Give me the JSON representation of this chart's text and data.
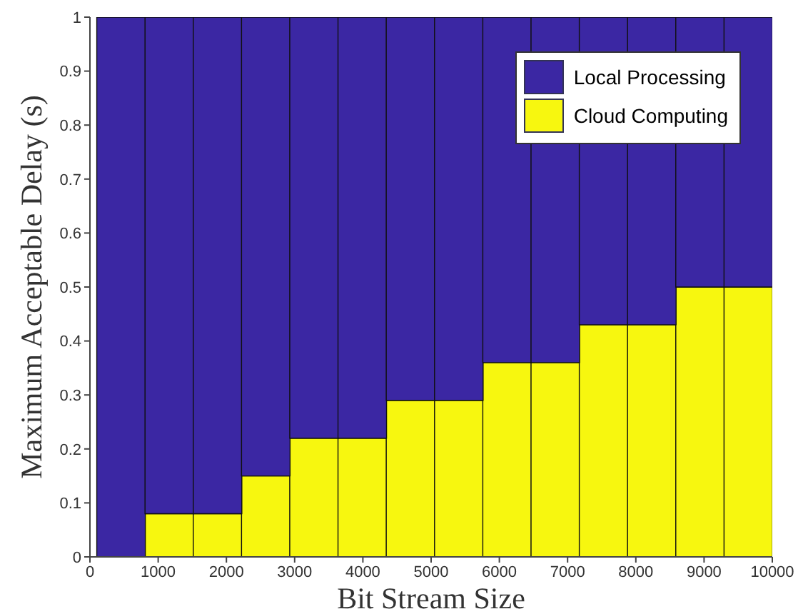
{
  "chart_data": {
    "type": "bar",
    "stacked": true,
    "xlabel": "Bit Stream Size",
    "ylabel": "Maximum Acceptable Delay (s)",
    "x": [
      454,
      1161,
      1868,
      2575,
      3282,
      3989,
      4696,
      5404,
      6111,
      6818,
      7525,
      8232,
      8939,
      9646
    ],
    "series": [
      {
        "name": "Cloud Computing",
        "color": "#f7f70f",
        "values": [
          0,
          0.08,
          0.08,
          0.15,
          0.22,
          0.22,
          0.29,
          0.29,
          0.36,
          0.36,
          0.43,
          0.43,
          0.5,
          0.5
        ]
      },
      {
        "name": "Local Processing",
        "color": "#3b27a3",
        "values": [
          1,
          0.92,
          0.92,
          0.85,
          0.78,
          0.78,
          0.71,
          0.71,
          0.64,
          0.64,
          0.57,
          0.57,
          0.5,
          0.5
        ]
      }
    ],
    "xlim": [
      0,
      10000
    ],
    "xticks": [
      0,
      1000,
      2000,
      3000,
      4000,
      5000,
      6000,
      7000,
      8000,
      9000,
      10000
    ],
    "ylim": [
      0,
      1
    ],
    "yticks": [
      0,
      0.1,
      0.2,
      0.3,
      0.4,
      0.5,
      0.6,
      0.7,
      0.8,
      0.9,
      1
    ],
    "legend": "top right"
  }
}
